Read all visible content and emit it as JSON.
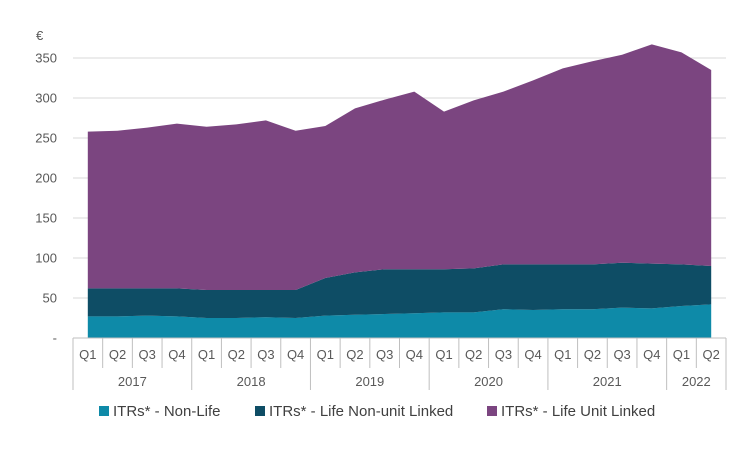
{
  "chart_data": {
    "type": "area",
    "stacked": true,
    "ylabel": "€",
    "ylim": [
      0,
      350
    ],
    "yticks": [
      {
        "value": 0,
        "label": "-"
      },
      {
        "value": 50,
        "label": "50"
      },
      {
        "value": 100,
        "label": "100"
      },
      {
        "value": 150,
        "label": "150"
      },
      {
        "value": 200,
        "label": "200"
      },
      {
        "value": 250,
        "label": "250"
      },
      {
        "value": 300,
        "label": "300"
      },
      {
        "value": 350,
        "label": "350"
      }
    ],
    "grid": true,
    "legend_position": "bottom",
    "categories": [
      "Q1",
      "Q2",
      "Q3",
      "Q4",
      "Q1",
      "Q2",
      "Q3",
      "Q4",
      "Q1",
      "Q2",
      "Q3",
      "Q4",
      "Q1",
      "Q2",
      "Q3",
      "Q4",
      "Q1",
      "Q2",
      "Q3",
      "Q4",
      "Q1",
      "Q2"
    ],
    "years": [
      {
        "label": "2017",
        "count": 4
      },
      {
        "label": "2018",
        "count": 4
      },
      {
        "label": "2019",
        "count": 4
      },
      {
        "label": "2020",
        "count": 4
      },
      {
        "label": "2021",
        "count": 4
      },
      {
        "label": "2022",
        "count": 2
      }
    ],
    "series": [
      {
        "name": "ITRs* - Non-Life",
        "color": "#0e8aa8",
        "values": [
          27,
          27,
          28,
          27,
          25,
          25,
          26,
          25,
          28,
          29,
          30,
          31,
          32,
          32,
          36,
          35,
          36,
          36,
          38,
          37,
          40,
          42
        ]
      },
      {
        "name": "ITRs* - Life Non-unit Linked",
        "color": "#0e4d65",
        "values": [
          35,
          35,
          34,
          35,
          35,
          35,
          34,
          35,
          47,
          53,
          56,
          55,
          54,
          55,
          56,
          57,
          56,
          56,
          56,
          56,
          52,
          48
        ]
      },
      {
        "name": "ITRs* - Life Unit Linked",
        "color": "#7b4580",
        "values": [
          196,
          197,
          201,
          206,
          204,
          207,
          212,
          199,
          190,
          205,
          212,
          222,
          197,
          210,
          216,
          230,
          245,
          254,
          260,
          274,
          265,
          245
        ]
      }
    ]
  }
}
